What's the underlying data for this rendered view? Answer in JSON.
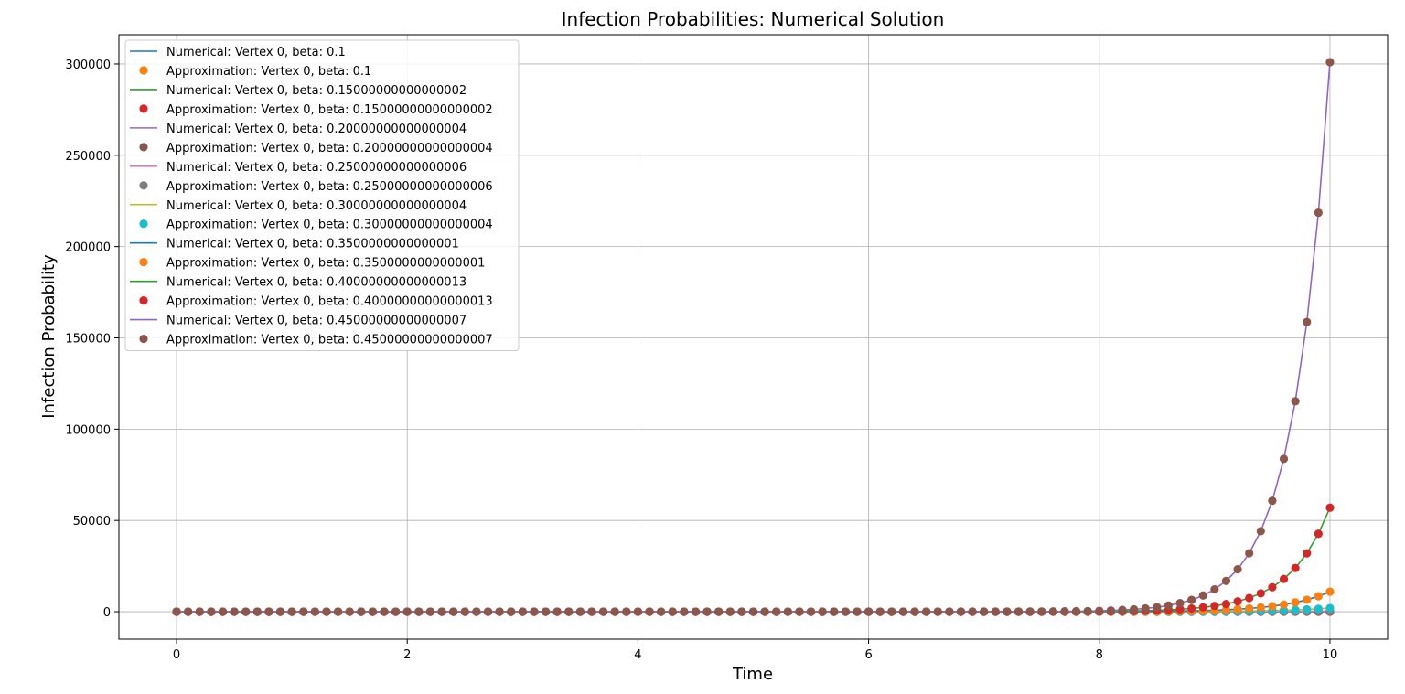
{
  "chart_data": {
    "type": "line",
    "title": "Infection Probabilities: Numerical Solution",
    "xlabel": "Time",
    "ylabel": "Infection Probability",
    "xlim": [
      -0.5,
      10.5
    ],
    "ylim": [
      -15000,
      316000
    ],
    "xticks": [
      0,
      2,
      4,
      6,
      8,
      10
    ],
    "xtick_labels": [
      "0",
      "2",
      "4",
      "6",
      "8",
      "10"
    ],
    "yticks": [
      0,
      50000,
      100000,
      150000,
      200000,
      250000,
      300000
    ],
    "ytick_labels": [
      "0",
      "50000",
      "100000",
      "150000",
      "200000",
      "250000",
      "300000"
    ],
    "grid": true,
    "legend_position": "top-left",
    "x": {
      "start": 0,
      "end": 10,
      "count": 101
    },
    "series": [
      {
        "beta": 0.1,
        "name": "Numerical: Vertex 0, beta: 0.1",
        "marker_name": "Approximation: Vertex 0, beta: 0.1",
        "line_color": "#1f77b4",
        "marker_color": "#ff7f0e",
        "final_value": 4.5
      },
      {
        "beta": 0.15000000000000002,
        "name": "Numerical: Vertex 0, beta: 0.15000000000000002",
        "marker_name": "Approximation: Vertex 0, beta: 0.15000000000000002",
        "line_color": "#2ca02c",
        "marker_color": "#d62728",
        "final_value": 20
      },
      {
        "beta": 0.20000000000000004,
        "name": "Numerical: Vertex 0, beta: 0.20000000000000004",
        "marker_name": "Approximation: Vertex 0, beta: 0.20000000000000004",
        "line_color": "#9467bd",
        "marker_color": "#8c564b",
        "final_value": 90
      },
      {
        "beta": 0.25000000000000006,
        "name": "Numerical: Vertex 0, beta: 0.25000000000000006",
        "marker_name": "Approximation: Vertex 0, beta: 0.25000000000000006",
        "line_color": "#e377c2",
        "marker_color": "#7f7f7f",
        "final_value": 400
      },
      {
        "beta": 0.30000000000000004,
        "name": "Numerical: Vertex 0, beta: 0.30000000000000004",
        "marker_name": "Approximation: Vertex 0, beta: 0.30000000000000004",
        "line_color": "#bcbd22",
        "marker_color": "#17becf",
        "final_value": 2000
      },
      {
        "beta": 0.3500000000000001,
        "name": "Numerical: Vertex 0, beta: 0.3500000000000001",
        "marker_name": "Approximation: Vertex 0, beta: 0.3500000000000001",
        "line_color": "#1f77b4",
        "marker_color": "#ff7f0e",
        "final_value": 11000
      },
      {
        "beta": 0.40000000000000013,
        "name": "Numerical: Vertex 0, beta: 0.40000000000000013",
        "marker_name": "Approximation: Vertex 0, beta: 0.40000000000000013",
        "line_color": "#2ca02c",
        "marker_color": "#d62728",
        "final_value": 57000
      },
      {
        "beta": 0.45000000000000007,
        "name": "Numerical: Vertex 0, beta: 0.45000000000000007",
        "marker_name": "Approximation: Vertex 0, beta: 0.45000000000000007",
        "line_color": "#9467bd",
        "marker_color": "#8c564b",
        "final_value": 301000
      }
    ]
  }
}
